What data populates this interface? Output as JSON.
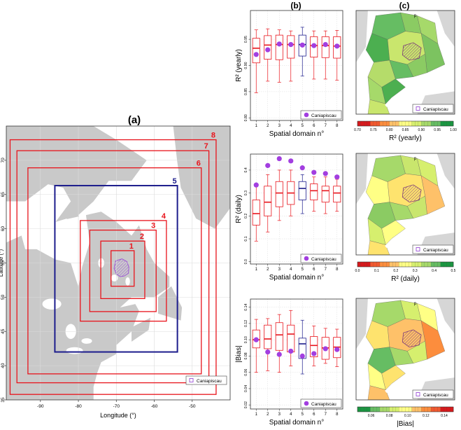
{
  "panel_labels": {
    "a": "(a)",
    "b": "(b)",
    "c": "(c)"
  },
  "colors": {
    "domain": "#e8141c",
    "domain_selected": "#1c1c8c",
    "land": "#c9c9c9",
    "basin": "#9b4fd6",
    "median_normal": "#e8141c",
    "median_selected": "#1c1c8c",
    "point": "#a23ee0",
    "grid": "#dcdcdc"
  },
  "legend": {
    "caniapiscau": "Caniapiscau"
  },
  "map_features": {
    "north_arrow": "p"
  },
  "chart_data": [
    {
      "id": "a",
      "type": "map",
      "title": "(a)",
      "xlabel": "Longitude (°)",
      "ylabel": "Latitude (°)",
      "xlim": [
        -99,
        -40
      ],
      "ylim": [
        35,
        75
      ],
      "xticks": [
        -90,
        -80,
        -70,
        -60,
        -50
      ],
      "yticks": [
        35,
        40,
        45,
        50,
        55,
        60,
        65,
        70
      ],
      "grid": true,
      "legend": "bottom-right",
      "domains": [
        {
          "n": "1",
          "lon": [
            -71.4,
            -65.3
          ],
          "lat": [
            51.6,
            56.8
          ]
        },
        {
          "n": "2",
          "lon": [
            -74.1,
            -62.5
          ],
          "lat": [
            49.8,
            58.2
          ]
        },
        {
          "n": "3",
          "lon": [
            -77.0,
            -59.5
          ],
          "lat": [
            47.9,
            59.8
          ]
        },
        {
          "n": "4",
          "lon": [
            -79.5,
            -56.8
          ],
          "lat": [
            46.5,
            61.2
          ]
        },
        {
          "n": "5",
          "lon": [
            -86.2,
            -53.9
          ],
          "lat": [
            42.0,
            66.3
          ]
        },
        {
          "n": "6",
          "lon": [
            -93.3,
            -47.6
          ],
          "lat": [
            38.8,
            68.9
          ]
        },
        {
          "n": "7",
          "lon": [
            -96.2,
            -45.6
          ],
          "lat": [
            37.5,
            71.4
          ]
        },
        {
          "n": "8",
          "lon": [
            -98.0,
            -43.7
          ],
          "lat": [
            35.8,
            73.0
          ]
        }
      ],
      "selected_domain": "5"
    },
    {
      "id": "b1",
      "type": "boxplot",
      "ylabel": "R² (yearly)",
      "xlabel": "Spatial domain n°",
      "categories": [
        "1",
        "2",
        "3",
        "4",
        "5",
        "6",
        "7",
        "8"
      ],
      "ylim": [
        0.795,
        1.005
      ],
      "yticks": [
        "0.80",
        "0.85",
        "0.90",
        "0.95"
      ],
      "ytick_values": [
        0.8,
        0.85,
        0.9,
        0.95
      ],
      "grid": true,
      "legend": "bottom-right",
      "highlight": "5",
      "boxes": [
        {
          "min": 0.848,
          "q1": 0.905,
          "median": 0.933,
          "q3": 0.952,
          "max": 0.968
        },
        {
          "min": 0.87,
          "q1": 0.912,
          "median": 0.939,
          "q3": 0.957,
          "max": 0.97
        },
        {
          "min": 0.868,
          "q1": 0.911,
          "median": 0.94,
          "q3": 0.958,
          "max": 0.968
        },
        {
          "min": 0.87,
          "q1": 0.914,
          "median": 0.94,
          "q3": 0.957,
          "max": 0.966
        },
        {
          "min": 0.88,
          "q1": 0.918,
          "median": 0.94,
          "q3": 0.958,
          "max": 0.973
        },
        {
          "min": 0.874,
          "q1": 0.916,
          "median": 0.938,
          "q3": 0.955,
          "max": 0.966
        },
        {
          "min": 0.874,
          "q1": 0.915,
          "median": 0.938,
          "q3": 0.955,
          "max": 0.966
        },
        {
          "min": 0.872,
          "q1": 0.914,
          "median": 0.937,
          "q3": 0.955,
          "max": 0.967
        }
      ],
      "points": [
        0.921,
        0.93,
        0.941,
        0.94,
        0.939,
        0.938,
        0.94,
        0.937
      ]
    },
    {
      "id": "b2",
      "type": "boxplot",
      "ylabel": "R² (daily)",
      "xlabel": "Spatial domain n°",
      "categories": [
        "1",
        "2",
        "3",
        "4",
        "5",
        "6",
        "7",
        "8"
      ],
      "ylim": [
        -0.01,
        0.47
      ],
      "yticks": [
        "0.0",
        "0.1",
        "0.2",
        "0.3",
        "0.4"
      ],
      "ytick_values": [
        0.0,
        0.1,
        0.2,
        0.3,
        0.4
      ],
      "grid": true,
      "legend": "bottom-right",
      "highlight": "5",
      "boxes": [
        {
          "min": 0.09,
          "q1": 0.16,
          "median": 0.21,
          "q3": 0.27,
          "max": 0.34
        },
        {
          "min": 0.13,
          "q1": 0.2,
          "median": 0.26,
          "q3": 0.33,
          "max": 0.38
        },
        {
          "min": 0.18,
          "q1": 0.24,
          "median": 0.3,
          "q3": 0.35,
          "max": 0.4
        },
        {
          "min": 0.2,
          "q1": 0.25,
          "median": 0.3,
          "q3": 0.35,
          "max": 0.4
        },
        {
          "min": 0.21,
          "q1": 0.27,
          "median": 0.32,
          "q3": 0.35,
          "max": 0.38
        },
        {
          "min": 0.22,
          "q1": 0.27,
          "median": 0.31,
          "q3": 0.34,
          "max": 0.37
        },
        {
          "min": 0.21,
          "q1": 0.26,
          "median": 0.31,
          "q3": 0.33,
          "max": 0.37
        },
        {
          "min": 0.22,
          "q1": 0.26,
          "median": 0.3,
          "q3": 0.33,
          "max": 0.36
        }
      ],
      "points": [
        0.335,
        0.42,
        0.45,
        0.44,
        0.41,
        0.39,
        0.385,
        0.37
      ]
    },
    {
      "id": "b3",
      "type": "boxplot",
      "ylabel": "|Bias|",
      "xlabel": "Spatial domain n°",
      "categories": [
        "1",
        "2",
        "3",
        "4",
        "5",
        "6",
        "7",
        "8"
      ],
      "ylim": [
        0.015,
        0.15
      ],
      "yticks": [
        "0.02",
        "0.04",
        "0.06",
        "0.08",
        "0.10",
        "0.12",
        "0.14"
      ],
      "ytick_values": [
        0.02,
        0.04,
        0.06,
        0.08,
        0.1,
        0.12,
        0.14
      ],
      "grid": true,
      "legend": "bottom-right",
      "highlight": "5",
      "boxes": [
        {
          "min": 0.06,
          "q1": 0.09,
          "median": 0.1,
          "q3": 0.112,
          "max": 0.125
        },
        {
          "min": 0.062,
          "q1": 0.089,
          "median": 0.101,
          "q3": 0.118,
          "max": 0.126
        },
        {
          "min": 0.06,
          "q1": 0.087,
          "median": 0.106,
          "q3": 0.121,
          "max": 0.131
        },
        {
          "min": 0.068,
          "q1": 0.085,
          "median": 0.107,
          "q3": 0.118,
          "max": 0.136
        },
        {
          "min": 0.058,
          "q1": 0.077,
          "median": 0.095,
          "q3": 0.102,
          "max": 0.124
        },
        {
          "min": 0.068,
          "q1": 0.079,
          "median": 0.093,
          "q3": 0.104,
          "max": 0.117
        },
        {
          "min": 0.071,
          "q1": 0.076,
          "median": 0.09,
          "q3": 0.103,
          "max": 0.114
        },
        {
          "min": 0.067,
          "q1": 0.078,
          "median": 0.091,
          "q3": 0.103,
          "max": 0.113
        }
      ],
      "points": [
        0.1,
        0.085,
        0.082,
        0.086,
        0.08,
        0.083,
        0.089,
        0.088
      ]
    },
    {
      "id": "c1",
      "type": "choropleth",
      "colorbar_label": "R² (yearly)",
      "colorbar_range": [
        0.7,
        1.0
      ],
      "colorbar_ticks": [
        "0.70",
        "0.75",
        "0.80",
        "0.85",
        "0.90",
        "0.95",
        "1.00"
      ],
      "colorbar_colors": [
        "#d7191c",
        "#f1592f",
        "#fc8d3d",
        "#fec169",
        "#ffff85",
        "#d6ef6e",
        "#a6d96a",
        "#66bd63",
        "#1a9641"
      ],
      "legend": "bottom-right",
      "map_colors": [
        "#66bd63",
        "#8bcb63",
        "#a6d96a",
        "#4caf50",
        "#c9e66d",
        "#7cc360",
        "#b5dc6a"
      ]
    },
    {
      "id": "c2",
      "type": "choropleth",
      "colorbar_label": "R² (daily)",
      "colorbar_range": [
        0.0,
        0.5
      ],
      "colorbar_ticks": [
        "0.0",
        "0.1",
        "0.2",
        "0.3",
        "0.4",
        "0.5"
      ],
      "colorbar_colors": [
        "#d7191c",
        "#f1592f",
        "#fc8d3d",
        "#fec169",
        "#ffff85",
        "#d6ef6e",
        "#a6d96a",
        "#66bd63",
        "#1a9641"
      ],
      "legend": "bottom-right",
      "map_colors": [
        "#a6d96a",
        "#c9e66d",
        "#d6ef6e",
        "#ffff85",
        "#fee36e",
        "#fec169",
        "#8bcb63"
      ]
    },
    {
      "id": "c3",
      "type": "choropleth",
      "colorbar_label": "|Bias|",
      "colorbar_range": [
        0.045,
        0.15
      ],
      "colorbar_ticks": [
        "0.06",
        "0.08",
        "0.10",
        "0.12",
        "0.14"
      ],
      "colorbar_tick_values": [
        0.06,
        0.08,
        0.1,
        0.12,
        0.14
      ],
      "colorbar_colors": [
        "#1a9641",
        "#66bd63",
        "#a6d96a",
        "#d6ef6e",
        "#ffff85",
        "#fec169",
        "#fc8d3d",
        "#f1592f",
        "#d7191c"
      ],
      "legend": "bottom-right",
      "map_colors": [
        "#a6d96a",
        "#d6ef6e",
        "#ffff85",
        "#fee36e",
        "#fec169",
        "#fc8d3d",
        "#66bd63"
      ]
    }
  ]
}
